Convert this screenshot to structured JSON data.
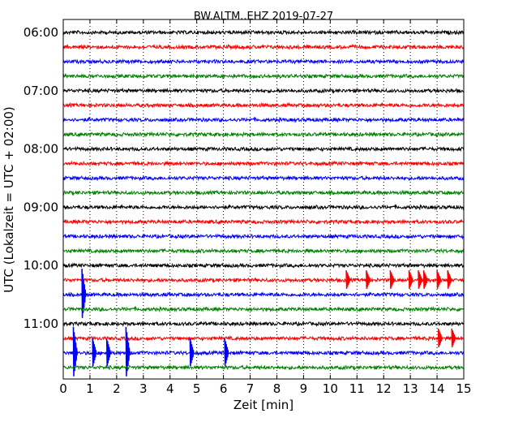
{
  "chart_data": {
    "type": "line",
    "title": "BW.ALTM..EHZ 2019-07-27",
    "xlabel": "Zeit  [min]",
    "ylabel": "UTC (Lokalzeit = UTC + 02:00)",
    "xlim": [
      0,
      15
    ],
    "x_ticks": [
      0,
      1,
      2,
      3,
      4,
      5,
      6,
      7,
      8,
      9,
      10,
      11,
      12,
      13,
      14,
      15
    ],
    "x_tick_labels": [
      "0",
      "1",
      "2",
      "3",
      "4",
      "5",
      "6",
      "7",
      "8",
      "9",
      "10",
      "11",
      "12",
      "13",
      "14",
      "15"
    ],
    "grid": "vertical dotted",
    "y_tick_labels": [
      "06:00",
      "07:00",
      "08:00",
      "09:00",
      "10:00",
      "11:00"
    ],
    "trace_interval_min": 15,
    "colors": [
      "#000000",
      "#ff0000",
      "#0000ff",
      "#008000"
    ],
    "traces": [
      {
        "start": "06:00",
        "color": "#000000"
      },
      {
        "start": "06:15",
        "color": "#ff0000"
      },
      {
        "start": "06:30",
        "color": "#0000ff"
      },
      {
        "start": "06:45",
        "color": "#008000"
      },
      {
        "start": "07:00",
        "color": "#000000"
      },
      {
        "start": "07:15",
        "color": "#ff0000"
      },
      {
        "start": "07:30",
        "color": "#0000ff"
      },
      {
        "start": "07:45",
        "color": "#008000"
      },
      {
        "start": "08:00",
        "color": "#000000"
      },
      {
        "start": "08:15",
        "color": "#ff0000"
      },
      {
        "start": "08:30",
        "color": "#0000ff"
      },
      {
        "start": "08:45",
        "color": "#008000"
      },
      {
        "start": "09:00",
        "color": "#000000"
      },
      {
        "start": "09:15",
        "color": "#ff0000"
      },
      {
        "start": "09:30",
        "color": "#0000ff"
      },
      {
        "start": "09:45",
        "color": "#008000"
      },
      {
        "start": "10:00",
        "color": "#000000"
      },
      {
        "start": "10:15",
        "color": "#ff0000",
        "events": [
          10.6,
          11.35,
          12.25,
          12.95,
          13.3,
          13.5,
          14.0,
          14.4
        ]
      },
      {
        "start": "10:30",
        "color": "#0000ff",
        "events": [
          0.7
        ]
      },
      {
        "start": "10:45",
        "color": "#008000"
      },
      {
        "start": "11:00",
        "color": "#000000"
      },
      {
        "start": "11:15",
        "color": "#ff0000",
        "events": [
          14.05,
          14.55
        ]
      },
      {
        "start": "11:30",
        "color": "#0000ff",
        "events": [
          0.38,
          1.1,
          1.63,
          2.35,
          4.75,
          6.05
        ]
      },
      {
        "start": "11:45",
        "color": "#008000"
      }
    ]
  }
}
